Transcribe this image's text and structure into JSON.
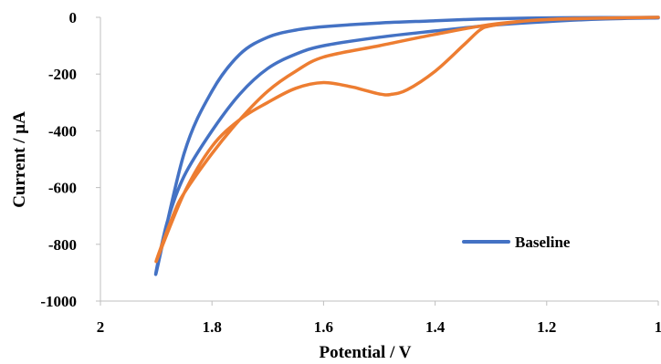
{
  "chart_data": {
    "type": "line",
    "title": "",
    "xlabel": "Potential / V",
    "ylabel": "Current / µA",
    "xlim": [
      1,
      2
    ],
    "x_reversed": true,
    "ylim": [
      -1000,
      0
    ],
    "x_ticks": [
      2,
      1.8,
      1.6,
      1.4,
      1.2,
      1
    ],
    "x_tick_labels": [
      "2",
      "1.8",
      "1.6",
      "1.4",
      "1.2",
      "1"
    ],
    "y_ticks": [
      0,
      -200,
      -400,
      -600,
      -800,
      -1000
    ],
    "y_tick_labels": [
      "0",
      "-200",
      "-400",
      "-600",
      "-800",
      "-1000"
    ],
    "grid": false,
    "legend": {
      "position": "inside-bottom-right",
      "entries": [
        "Baseline"
      ]
    },
    "colors": {
      "baseline": "#4472C4",
      "second": "#ED7D31"
    },
    "series": [
      {
        "name": "Baseline",
        "color": "#4472C4",
        "x": [
          1.0,
          1.1,
          1.2,
          1.3,
          1.35,
          1.4,
          1.5,
          1.6,
          1.65,
          1.7,
          1.75,
          1.8,
          1.85,
          1.9,
          1.88,
          1.85,
          1.8,
          1.75,
          1.7,
          1.65,
          1.6,
          1.5,
          1.4,
          1.3,
          1.2,
          1.1,
          1.0
        ],
        "y": [
          0,
          -1,
          -2,
          -5,
          -8,
          -12,
          -20,
          -33,
          -45,
          -70,
          -130,
          -260,
          -480,
          -900,
          -720,
          -560,
          -400,
          -270,
          -180,
          -130,
          -100,
          -70,
          -48,
          -28,
          -15,
          -6,
          -2
        ]
      },
      {
        "color": "#ED7D31",
        "x": [
          1.0,
          1.1,
          1.2,
          1.25,
          1.3,
          1.32,
          1.35,
          1.4,
          1.45,
          1.48,
          1.5,
          1.53,
          1.55,
          1.6,
          1.65,
          1.7,
          1.75,
          1.8,
          1.85,
          1.9,
          1.87,
          1.85,
          1.8,
          1.75,
          1.7,
          1.65,
          1.6,
          1.5,
          1.4,
          1.3,
          1.2,
          1.1,
          1.0
        ],
        "y": [
          0,
          -3,
          -8,
          -15,
          -30,
          -45,
          -100,
          -190,
          -255,
          -272,
          -270,
          -255,
          -245,
          -230,
          -250,
          -300,
          -360,
          -455,
          -620,
          -860,
          -700,
          -620,
          -480,
          -360,
          -260,
          -190,
          -140,
          -100,
          -60,
          -25,
          -8,
          -3,
          0
        ]
      }
    ]
  }
}
